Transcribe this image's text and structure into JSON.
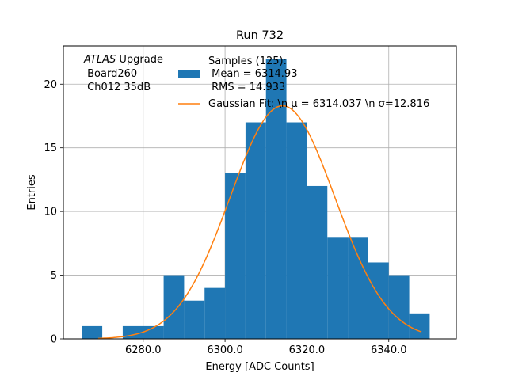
{
  "chart_data": {
    "type": "bar",
    "title": "Run 732",
    "xlabel": "Energy [ADC Counts]",
    "ylabel": "Entries",
    "xlim": [
      6260.5,
      6356.5
    ],
    "ylim": [
      0,
      23
    ],
    "x_ticks": [
      {
        "value": 6280,
        "label": "6280.0"
      },
      {
        "value": 6300,
        "label": "6300.0"
      },
      {
        "value": 6320,
        "label": "6320.0"
      },
      {
        "value": 6340,
        "label": "6340.0"
      }
    ],
    "y_ticks": [
      {
        "value": 0,
        "label": "0"
      },
      {
        "value": 5,
        "label": "5"
      },
      {
        "value": 10,
        "label": "10"
      },
      {
        "value": 15,
        "label": "15"
      },
      {
        "value": 20,
        "label": "20"
      }
    ],
    "grid": true,
    "histogram": {
      "bin_edges": [
        6265,
        6270,
        6275,
        6280,
        6285,
        6290,
        6295,
        6300,
        6305,
        6310,
        6315,
        6320,
        6325,
        6330,
        6335,
        6340,
        6345,
        6350
      ],
      "counts": [
        1,
        0,
        1,
        1,
        5,
        3,
        4,
        13,
        17,
        22,
        17,
        12,
        8,
        8,
        6,
        5,
        2
      ],
      "color": "#1f77b4"
    },
    "gaussian_fit": {
      "mu": 6314.037,
      "sigma": 12.816,
      "amplitude": 18.3,
      "x_range": [
        6269,
        6348
      ],
      "color": "#ff7f0e"
    },
    "legend": {
      "placement": "top-center",
      "histogram_lines": [
        "Samples (125):",
        " Mean = 6314.93",
        " RMS = 14.933"
      ],
      "fit_label": "Gaussian Fit: \\n μ = 6314.037 \\n σ=12.816"
    },
    "annotation": {
      "atlas": "ATLAS",
      "upgrade": " Upgrade",
      "lines": [
        " Board260",
        " Ch012 35dB"
      ]
    }
  }
}
